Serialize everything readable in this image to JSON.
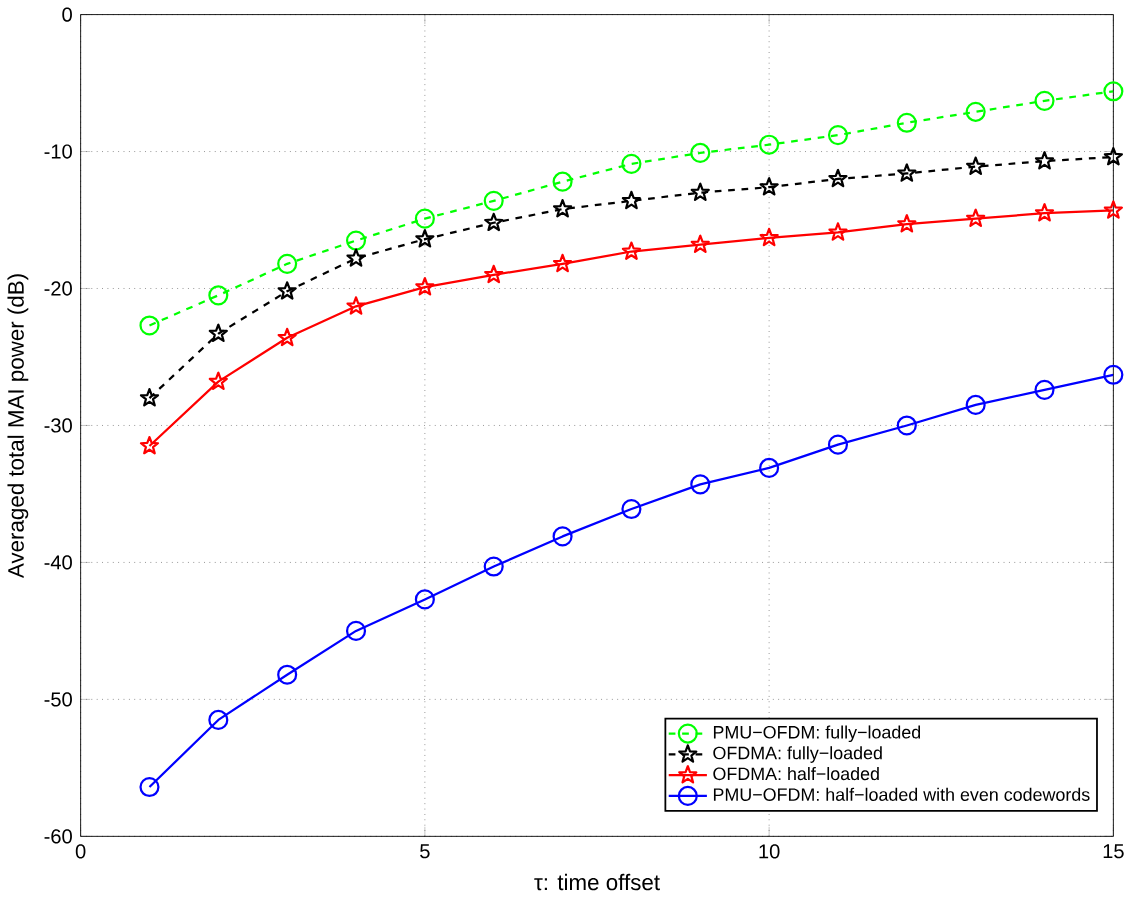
{
  "chart_data": {
    "type": "line",
    "xlabel": "τ: time offset",
    "ylabel": "Averaged total MAI power (dB)",
    "x": [
      1,
      2,
      3,
      4,
      5,
      6,
      7,
      8,
      9,
      10,
      11,
      12,
      13,
      14,
      15
    ],
    "series": [
      {
        "name": "PMU−OFDM: fully−loaded",
        "color": "#00ff00",
        "marker": "circle",
        "line_style": "dashed",
        "values": [
          -22.7,
          -20.5,
          -18.2,
          -16.5,
          -14.9,
          -13.6,
          -12.2,
          -10.9,
          -10.1,
          -9.5,
          -8.8,
          -7.9,
          -7.1,
          -6.3,
          -5.6
        ]
      },
      {
        "name": "OFDMA: fully−loaded",
        "color": "#000000",
        "marker": "star",
        "line_style": "dashed",
        "values": [
          -28,
          -23.3,
          -20.2,
          -17.8,
          -16.4,
          -15.2,
          -14.2,
          -13.6,
          -13,
          -12.6,
          -12,
          -11.6,
          -11.1,
          -10.7,
          -10.4
        ]
      },
      {
        "name": "OFDMA: half−loaded",
        "color": "#ff0000",
        "marker": "star",
        "line_style": "solid",
        "values": [
          -31.5,
          -26.8,
          -23.6,
          -21.3,
          -19.9,
          -19,
          -18.2,
          -17.3,
          -16.8,
          -16.3,
          -15.9,
          -15.3,
          -14.9,
          -14.5,
          -14.3
        ]
      },
      {
        "name": "PMU−OFDM: half−loaded with even codewords",
        "color": "#0000ff",
        "marker": "circle",
        "line_style": "solid",
        "values": [
          -56.4,
          -51.5,
          -48.2,
          -45,
          -42.7,
          -40.3,
          -38.1,
          -36.1,
          -34.3,
          -33.1,
          -31.4,
          -30,
          -28.5,
          -27.4,
          -26.3
        ]
      }
    ],
    "xlim": [
      0,
      15
    ],
    "ylim": [
      -60,
      0
    ],
    "xticks": [
      0,
      5,
      10,
      15
    ],
    "yticks": [
      -60,
      -50,
      -40,
      -30,
      -20,
      -10,
      0
    ],
    "grid": true,
    "legend": "bottom right"
  }
}
